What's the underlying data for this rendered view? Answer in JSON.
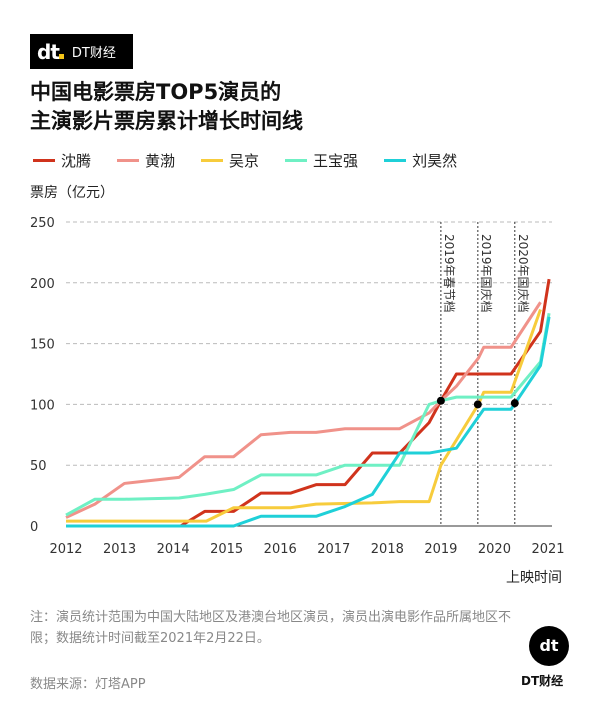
{
  "brand": {
    "logo_mark": "dt",
    "logo_text": "DT财经",
    "badge_mark": "dt",
    "badge_text": "DT财经"
  },
  "title": {
    "line1": "中国电影票房TOP5演员的",
    "line2": "主演影片票房累计增长时间线"
  },
  "note": "注：演员统计范围为中国大陆地区及港澳台地区演员，演员出演电影作品所属地区不限；数据统计时间截至2021年2月22日。",
  "source": "数据来源：灯塔APP",
  "chart_data": {
    "type": "line",
    "title": "中国电影票房TOP5演员的主演影片票房累计增长时间线",
    "ylabel": "票房（亿元）",
    "xlabel": "上映时间",
    "xlim": [
      2012,
      2021
    ],
    "ylim": [
      0,
      250
    ],
    "xticks": [
      "2012",
      "2013",
      "2014",
      "2015",
      "2016",
      "2017",
      "2018",
      "2019",
      "2020",
      "2021"
    ],
    "yticks": [
      "0",
      "50",
      "100",
      "150",
      "200",
      "250"
    ],
    "grid": true,
    "legend": "top",
    "series": [
      {
        "name": "沈腾",
        "color": "#d0331c",
        "points": [
          [
            2012,
            0
          ],
          [
            2014.14,
            0
          ],
          [
            2014.59,
            12
          ],
          [
            2015.13,
            12
          ],
          [
            2015.64,
            27
          ],
          [
            2016.19,
            27
          ],
          [
            2016.67,
            34
          ],
          [
            2017.21,
            34
          ],
          [
            2017.72,
            60
          ],
          [
            2018.23,
            60
          ],
          [
            2018.78,
            85
          ],
          [
            2019.0,
            103
          ],
          [
            2019.29,
            125
          ],
          [
            2020.31,
            125
          ],
          [
            2020.86,
            160
          ],
          [
            2021.02,
            203
          ]
        ]
      },
      {
        "name": "黄渤",
        "color": "#f0928a",
        "points": [
          [
            2012,
            7
          ],
          [
            2012.54,
            18
          ],
          [
            2013.09,
            35
          ],
          [
            2014.11,
            40
          ],
          [
            2014.59,
            57
          ],
          [
            2015.13,
            57
          ],
          [
            2015.64,
            75
          ],
          [
            2016.19,
            77
          ],
          [
            2016.67,
            77
          ],
          [
            2017.21,
            80
          ],
          [
            2018.23,
            80
          ],
          [
            2018.78,
            93
          ],
          [
            2019.0,
            103
          ],
          [
            2019.29,
            115
          ],
          [
            2019.7,
            138
          ],
          [
            2019.8,
            147
          ],
          [
            2020.31,
            147
          ],
          [
            2020.86,
            184
          ]
        ]
      },
      {
        "name": "吴京",
        "color": "#f7cc3c",
        "points": [
          [
            2012,
            4
          ],
          [
            2014.62,
            4
          ],
          [
            2015.13,
            15
          ],
          [
            2016.19,
            15
          ],
          [
            2016.67,
            18
          ],
          [
            2017.72,
            19
          ],
          [
            2018.23,
            20
          ],
          [
            2018.78,
            20
          ],
          [
            2019.0,
            50
          ],
          [
            2019.7,
            100
          ],
          [
            2019.8,
            110
          ],
          [
            2020.31,
            110
          ],
          [
            2020.86,
            178
          ]
        ]
      },
      {
        "name": "王宝强",
        "color": "#6ff0c4",
        "points": [
          [
            2012,
            9
          ],
          [
            2012.54,
            22
          ],
          [
            2013.09,
            22
          ],
          [
            2014.11,
            23
          ],
          [
            2014.59,
            26
          ],
          [
            2015.13,
            30
          ],
          [
            2015.64,
            42
          ],
          [
            2016.67,
            42
          ],
          [
            2017.21,
            50
          ],
          [
            2018.23,
            50
          ],
          [
            2018.78,
            100
          ],
          [
            2019.0,
            103
          ],
          [
            2019.29,
            106
          ],
          [
            2020.31,
            106
          ],
          [
            2020.86,
            135
          ],
          [
            2021.02,
            175
          ]
        ]
      },
      {
        "name": "刘昊然",
        "color": "#1fd0d8",
        "points": [
          [
            2012,
            0
          ],
          [
            2015.13,
            0
          ],
          [
            2015.64,
            8
          ],
          [
            2016.67,
            8
          ],
          [
            2017.21,
            16
          ],
          [
            2017.72,
            26
          ],
          [
            2018.23,
            60
          ],
          [
            2018.78,
            60
          ],
          [
            2019.29,
            64
          ],
          [
            2019.8,
            96
          ],
          [
            2020.31,
            96
          ],
          [
            2020.86,
            132
          ],
          [
            2021.02,
            172
          ]
        ]
      }
    ],
    "annotations": [
      {
        "label": "2019年春节档",
        "x": 2019.0,
        "y": 103
      },
      {
        "label": "2019年国庆档",
        "x": 2019.69,
        "y": 100
      },
      {
        "label": "2020年国庆档",
        "x": 2020.38,
        "y": 101
      }
    ]
  }
}
